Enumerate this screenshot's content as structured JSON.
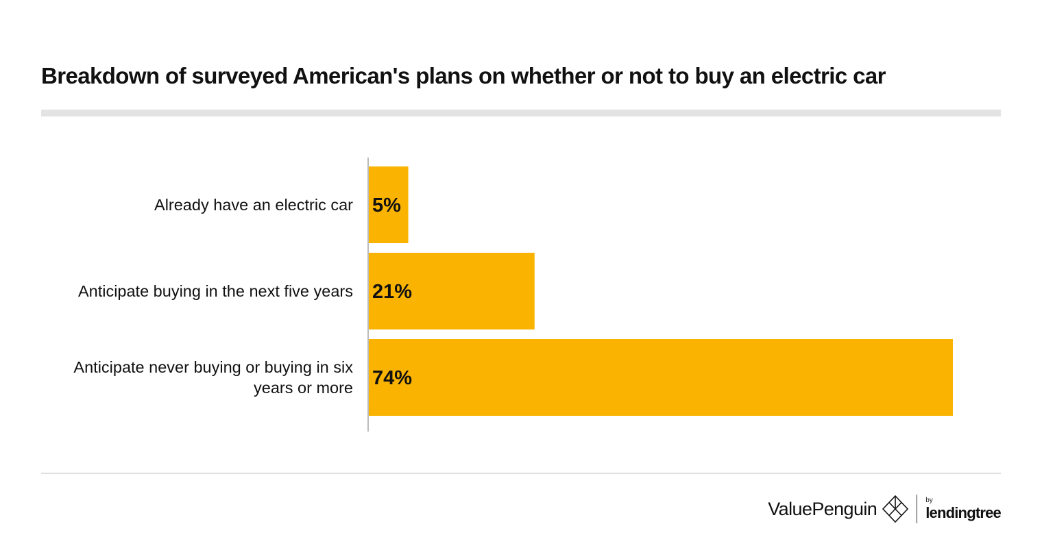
{
  "chart_data": {
    "type": "bar",
    "orientation": "horizontal",
    "title": "Breakdown of surveyed American's plans on whether or not to buy an electric car",
    "categories": [
      "Already have an electric car",
      "Anticipate buying in the next five years",
      "Anticipate never buying or buying in six years or more"
    ],
    "category_lines": [
      [
        "Already have an electric car"
      ],
      [
        "Anticipate buying in the next five years"
      ],
      [
        "Anticipate never buying or buying in six",
        "years or more"
      ]
    ],
    "values": [
      5,
      21,
      74
    ],
    "value_labels": [
      "5%",
      "21%",
      "74%"
    ],
    "unit": "%",
    "xlim": [
      0,
      74
    ],
    "bar_color": "#F9B300",
    "xlabel": "",
    "ylabel": "",
    "grid": false
  },
  "footer": {
    "brand": "ValuePenguin",
    "by": "by",
    "partner": "lendingtree"
  }
}
